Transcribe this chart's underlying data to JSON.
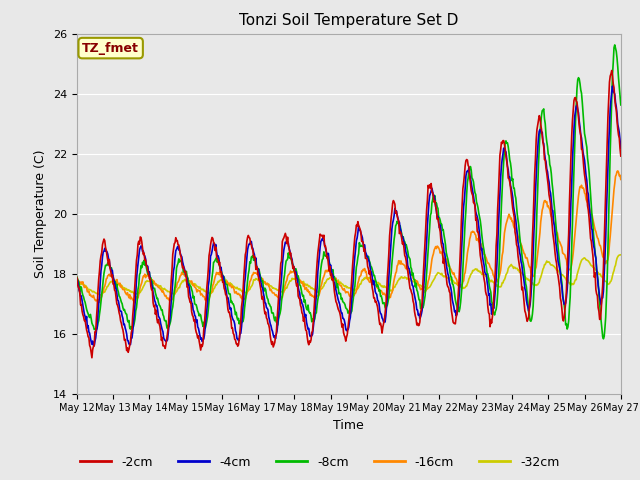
{
  "title": "Tonzi Soil Temperature Set D",
  "xlabel": "Time",
  "ylabel": "Soil Temperature (C)",
  "ylim": [
    14,
    26
  ],
  "xlim": [
    0,
    15
  ],
  "fig_facecolor": "#e8e8e8",
  "ax_facecolor": "#e8e8e8",
  "legend_label": "TZ_fmet",
  "series_colors": {
    "-2cm": "#cc0000",
    "-4cm": "#0000cc",
    "-8cm": "#00bb00",
    "-16cm": "#ff8800",
    "-32cm": "#cccc00"
  },
  "x_tick_labels": [
    "May 12",
    "May 13",
    "May 14",
    "May 15",
    "May 16",
    "May 17",
    "May 18",
    "May 19",
    "May 20",
    "May 21",
    "May 22",
    "May 23",
    "May 24",
    "May 25",
    "May 26",
    "May 27"
  ],
  "yticks": [
    14,
    16,
    18,
    20,
    22,
    24,
    26
  ],
  "grid_color": "white",
  "linewidth": 1.2
}
